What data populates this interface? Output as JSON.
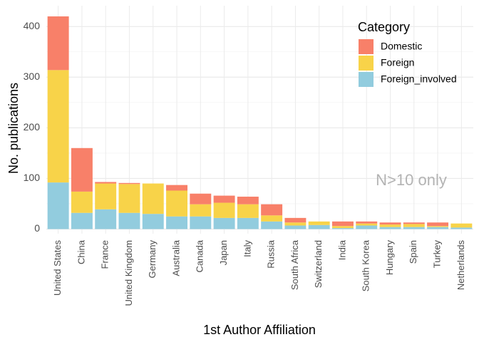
{
  "chart_data": {
    "type": "bar",
    "stacked": true,
    "xlabel": "1st Author Affiliation",
    "ylabel": "No. publications",
    "ylim": [
      0,
      430
    ],
    "yticks": [
      0,
      100,
      200,
      300,
      400
    ],
    "grid": true,
    "legend": {
      "title": "Category",
      "position": "top-right"
    },
    "annotation": "N>10 only",
    "categories": [
      "United States",
      "China",
      "France",
      "United Kingdom",
      "Germany",
      "Australia",
      "Canada",
      "Japan",
      "Italy",
      "Russia",
      "South Africa",
      "Switzerland",
      "India",
      "South Korea",
      "Hungary",
      "Spain",
      "Turkey",
      "Netherlands"
    ],
    "series": [
      {
        "name": "Foreign_involved",
        "color": "#92CCDE",
        "values": [
          92,
          32,
          39,
          32,
          30,
          25,
          25,
          22,
          22,
          15,
          7,
          8,
          2,
          7,
          4,
          4,
          4,
          3
        ]
      },
      {
        "name": "Foreign",
        "color": "#F8D349",
        "values": [
          222,
          42,
          51,
          57,
          60,
          51,
          24,
          30,
          27,
          12,
          6,
          7,
          4,
          4,
          5,
          6,
          2,
          8
        ]
      },
      {
        "name": "Domestic",
        "color": "#F88069",
        "values": [
          106,
          86,
          3,
          2,
          0,
          11,
          21,
          14,
          15,
          22,
          9,
          0,
          9,
          4,
          4,
          3,
          7,
          0
        ]
      }
    ],
    "legend_order": [
      "Domestic",
      "Foreign",
      "Foreign_involved"
    ]
  }
}
